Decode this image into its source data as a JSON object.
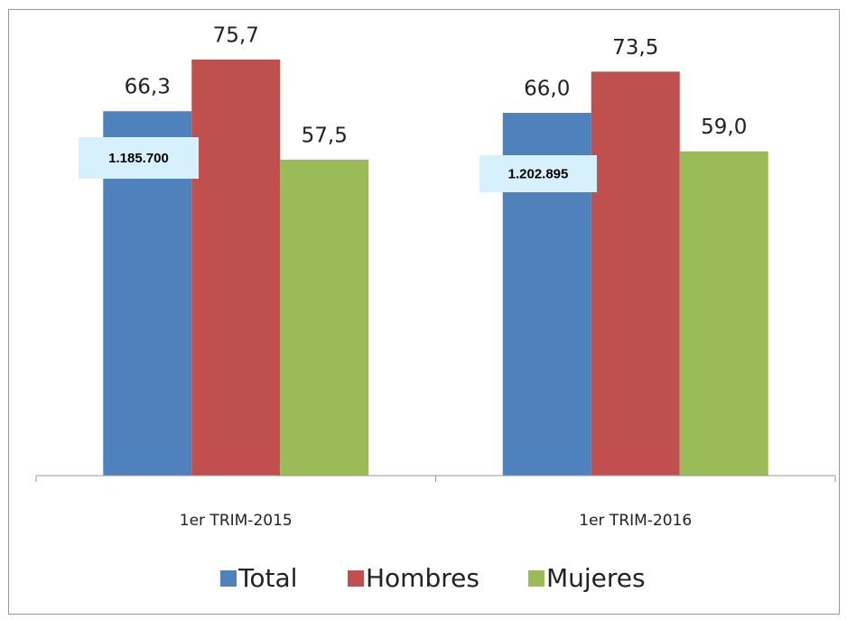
{
  "chart_data": {
    "type": "bar",
    "categories": [
      "1er TRIM-2015",
      "1er TRIM-2016"
    ],
    "series": [
      {
        "name": "Total",
        "color": "#4f81bd",
        "values": [
          66.3,
          66.0
        ],
        "value_labels": [
          "66,3",
          "66,0"
        ]
      },
      {
        "name": "Hombres",
        "color": "#c0504d",
        "values": [
          75.7,
          73.5
        ],
        "value_labels": [
          "75,7",
          "73,5"
        ]
      },
      {
        "name": "Mujeres",
        "color": "#9bbb59",
        "values": [
          57.5,
          59.0
        ],
        "value_labels": [
          "57,5",
          "59,0"
        ]
      }
    ],
    "annotations": [
      "1.185.700",
      "1.202.895"
    ],
    "legend": "bottom"
  }
}
